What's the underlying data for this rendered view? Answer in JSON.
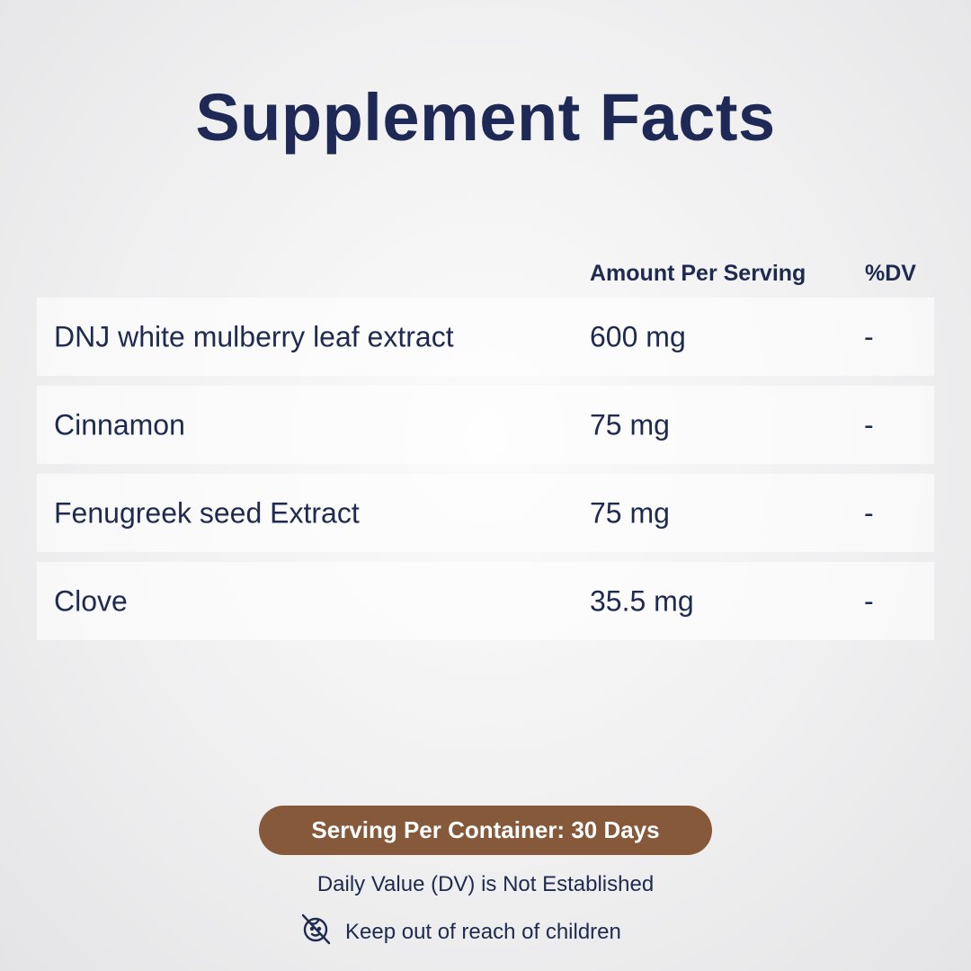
{
  "title": "Supplement Facts",
  "table": {
    "headers": {
      "amount": "Amount Per Serving",
      "dv": "%DV"
    },
    "rows": [
      {
        "name": "DNJ white mulberry leaf extract",
        "amount": "600 mg",
        "dv": "-"
      },
      {
        "name": "Cinnamon",
        "amount": "75 mg",
        "dv": "-"
      },
      {
        "name": "Fenugreek seed Extract",
        "amount": "75 mg",
        "dv": "-"
      },
      {
        "name": "Clove",
        "amount": "35.5 mg",
        "dv": "-"
      }
    ]
  },
  "serving_badge": "Serving Per Container: 30 Days",
  "dv_note": "Daily Value (DV) is Not Established",
  "warning": {
    "icon": "no-children-icon",
    "text": "Keep out of reach of children"
  },
  "colors": {
    "title": "#1e2a55",
    "badge": "#85593a"
  }
}
